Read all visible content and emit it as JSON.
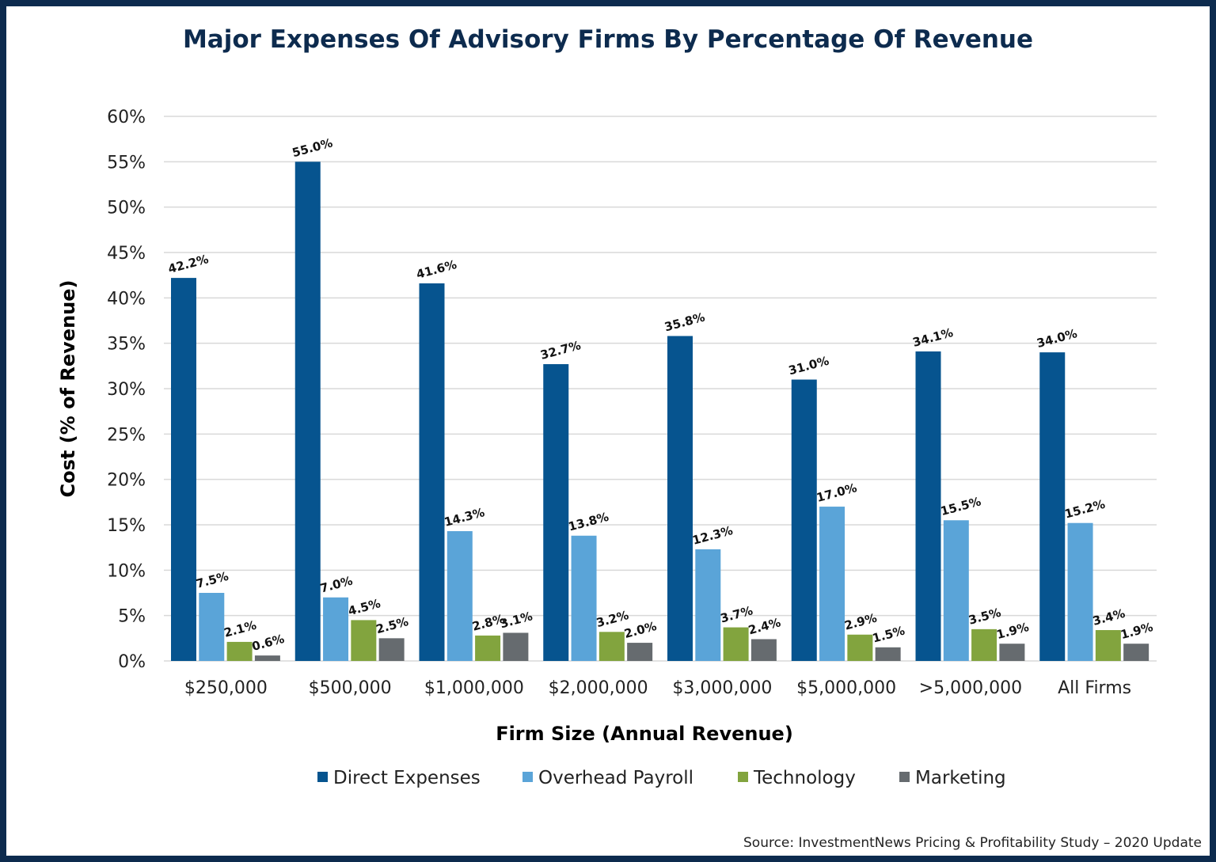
{
  "chart_data": {
    "type": "bar",
    "title": "Major Expenses Of Advisory Firms By Percentage Of Revenue",
    "xlabel": "Firm Size (Annual Revenue)",
    "ylabel": "Cost (% of Revenue)",
    "ylim": [
      0,
      60
    ],
    "yticks": [
      0,
      5,
      10,
      15,
      20,
      25,
      30,
      35,
      40,
      45,
      50,
      55,
      60
    ],
    "ytick_format": "%",
    "grid": true,
    "legend_position": "bottom",
    "categories": [
      "$250,000",
      "$500,000",
      "$1,000,000",
      "$2,000,000",
      "$3,000,000",
      "$5,000,000",
      ">5,000,000",
      "All Firms"
    ],
    "series": [
      {
        "name": "Direct Expenses",
        "color": "#06548f",
        "values": [
          42.2,
          55.0,
          41.6,
          32.7,
          35.8,
          31.0,
          34.1,
          34.0
        ]
      },
      {
        "name": "Overhead Payroll",
        "color": "#5aa4d8",
        "values": [
          7.5,
          7.0,
          14.3,
          13.8,
          12.3,
          17.0,
          15.5,
          15.2
        ]
      },
      {
        "name": "Technology",
        "color": "#82a43e",
        "values": [
          2.1,
          4.5,
          2.8,
          3.2,
          3.7,
          2.9,
          3.5,
          3.4
        ]
      },
      {
        "name": "Marketing",
        "color": "#666b6f",
        "values": [
          0.6,
          2.5,
          3.1,
          2.0,
          2.4,
          1.5,
          1.9,
          1.9
        ]
      }
    ],
    "source": "Source: InvestmentNews Pricing & Profitability Study – 2020 Update"
  },
  "colors": {
    "title": "#0d2b4e",
    "frame": "#0d2b4e",
    "grid": "#d9d9d9"
  }
}
